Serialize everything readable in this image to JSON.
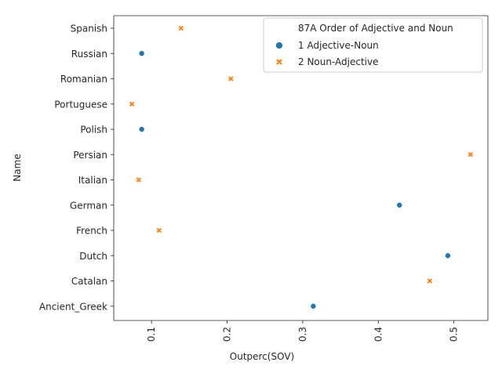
{
  "chart_data": {
    "type": "scatter",
    "xlabel": "Outperc(SOV)",
    "ylabel": "Name",
    "xlim": [
      0.05,
      0.545
    ],
    "xticks": [
      0.1,
      0.2,
      0.3,
      0.4,
      0.5
    ],
    "xtick_labels": [
      "0.1",
      "0.2",
      "0.3",
      "0.4",
      "0.5"
    ],
    "categories": [
      "Spanish",
      "Russian",
      "Romanian",
      "Portuguese",
      "Polish",
      "Persian",
      "Italian",
      "German",
      "French",
      "Dutch",
      "Catalan",
      "Ancient_Greek"
    ],
    "legend": {
      "title": "87A Order of Adjective and Noun",
      "position": "top-right",
      "entries": [
        "1 Adjective-Noun",
        "2 Noun-Adjective"
      ]
    },
    "series": [
      {
        "name": "1 Adjective-Noun",
        "marker": "circle",
        "color": "#1f77b4",
        "points": [
          {
            "label": "Russian",
            "x": 0.087
          },
          {
            "label": "Polish",
            "x": 0.087
          },
          {
            "label": "German",
            "x": 0.428
          },
          {
            "label": "Dutch",
            "x": 0.492
          },
          {
            "label": "Ancient_Greek",
            "x": 0.314
          }
        ]
      },
      {
        "name": "2 Noun-Adjective",
        "marker": "x",
        "color": "#ff7f0e",
        "points": [
          {
            "label": "Spanish",
            "x": 0.139
          },
          {
            "label": "Romanian",
            "x": 0.205
          },
          {
            "label": "Portuguese",
            "x": 0.074
          },
          {
            "label": "Persian",
            "x": 0.522
          },
          {
            "label": "Italian",
            "x": 0.083
          },
          {
            "label": "French",
            "x": 0.11
          },
          {
            "label": "Catalan",
            "x": 0.468
          }
        ]
      }
    ]
  }
}
